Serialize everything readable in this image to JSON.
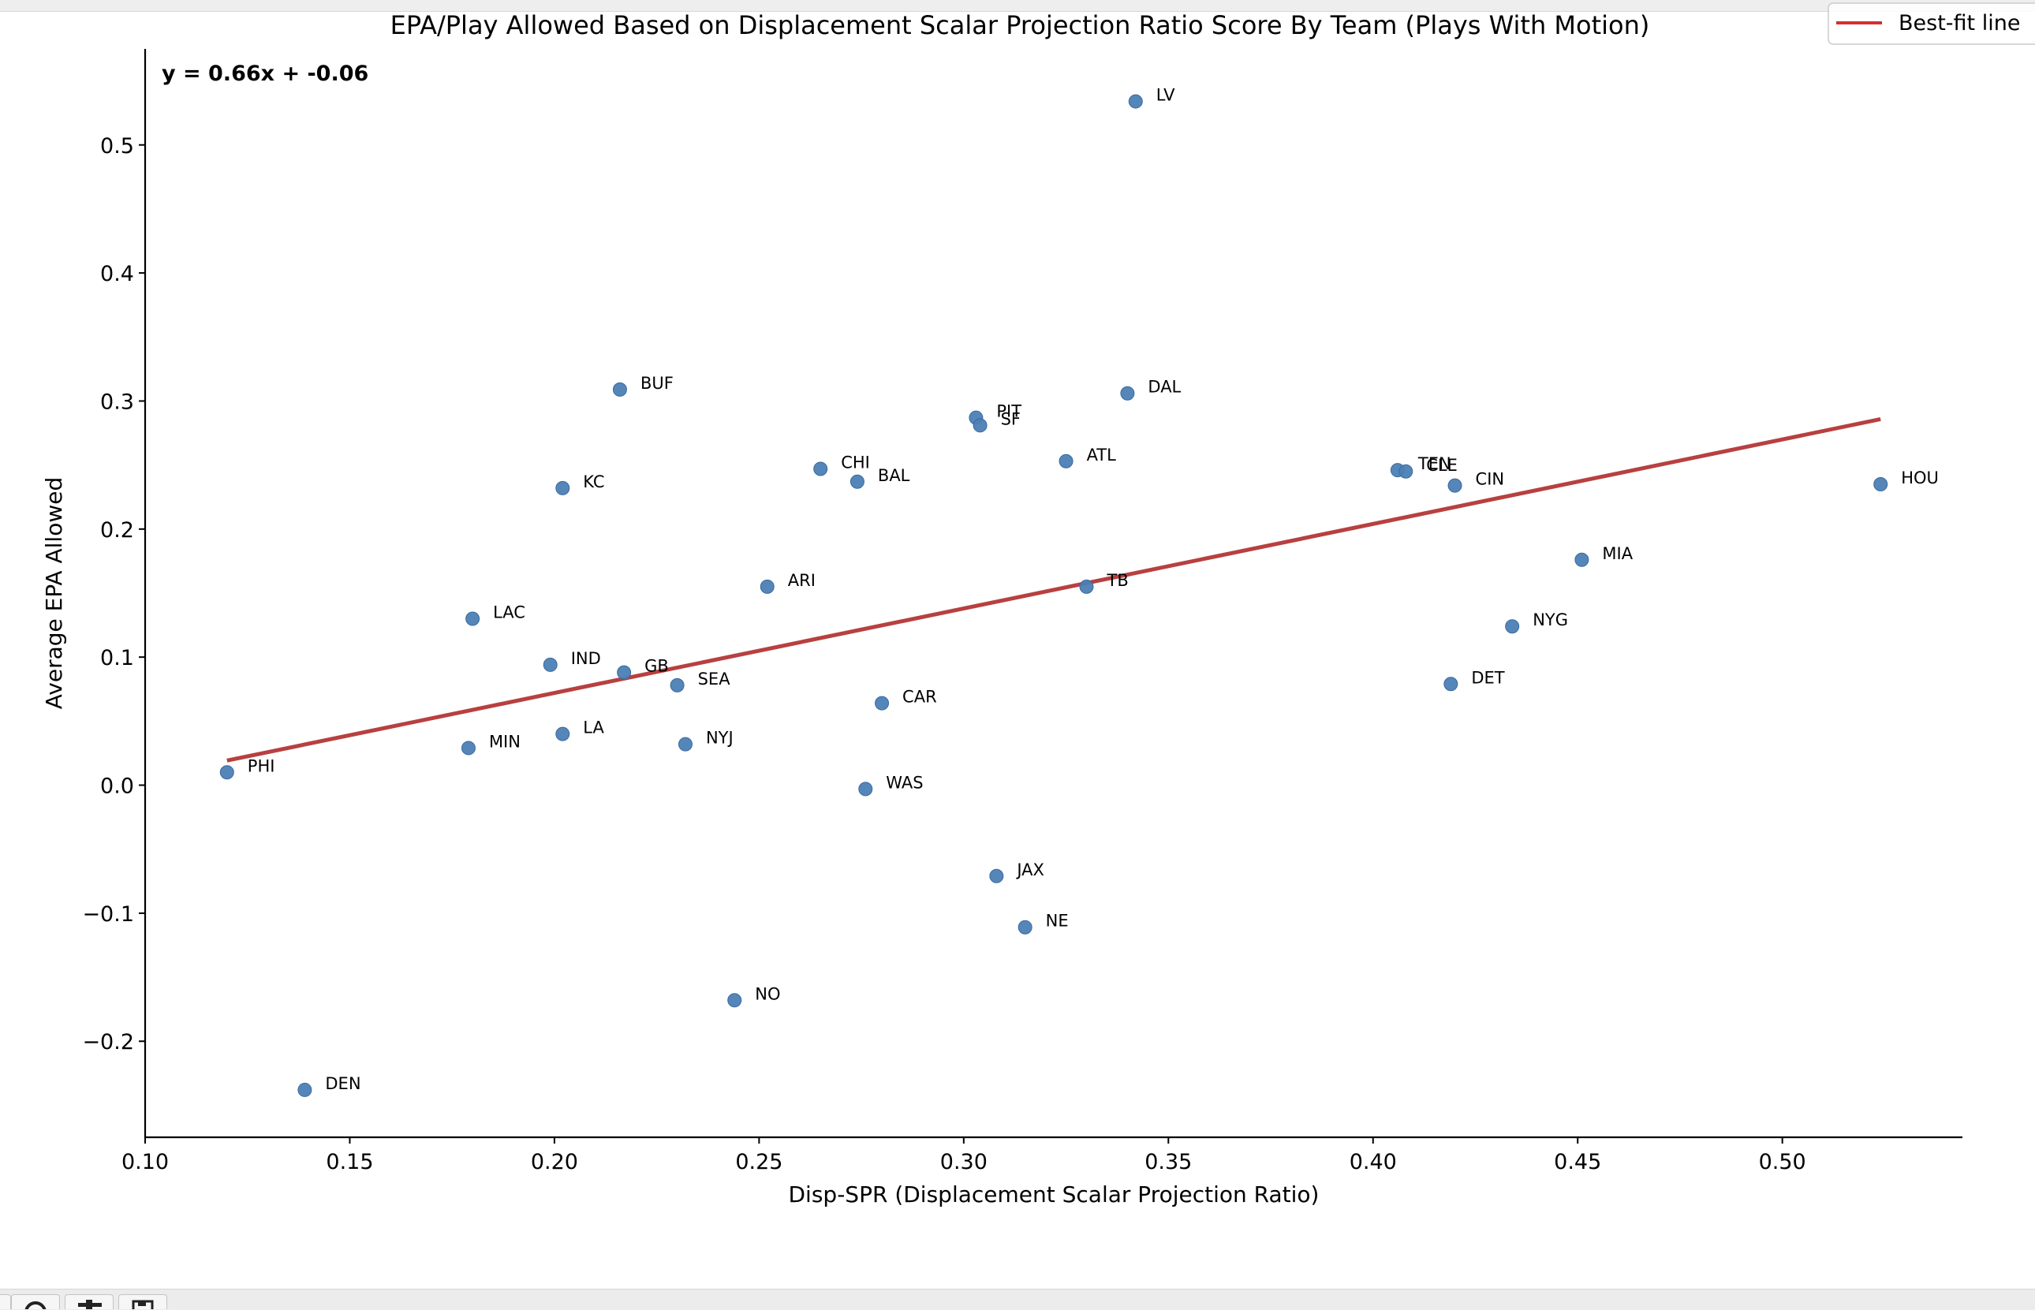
{
  "chart_data": {
    "type": "scatter",
    "title": "EPA/Play Allowed Based on Displacement Scalar Projection Ratio Score By Team (Plays With Motion)",
    "xlabel": "Disp-SPR (Displacement Scalar Projection Ratio)",
    "ylabel": "Average EPA Allowed",
    "xlim": [
      0.1,
      0.544
    ],
    "ylim": [
      -0.275,
      0.575
    ],
    "xticks": [
      "0.10",
      "0.15",
      "0.20",
      "0.25",
      "0.30",
      "0.35",
      "0.40",
      "0.45",
      "0.50"
    ],
    "yticks": [
      "−0.2",
      "−0.1",
      "0.0",
      "0.1",
      "0.2",
      "0.3",
      "0.4",
      "0.5"
    ],
    "xtick_values": [
      0.1,
      0.15,
      0.2,
      0.25,
      0.3,
      0.35,
      0.4,
      0.45,
      0.5
    ],
    "ytick_values": [
      -0.2,
      -0.1,
      0.0,
      0.1,
      0.2,
      0.3,
      0.4,
      0.5
    ],
    "grid": false,
    "point_color": "#4c7fb5",
    "fit_color": "#b84040",
    "legend": {
      "placement": "top-right",
      "entries": [
        "Best-fit line"
      ]
    },
    "annotation": "y = 0.66x + -0.06",
    "fit_line": {
      "slope": 0.66,
      "intercept": -0.06,
      "x_start": 0.12,
      "x_end": 0.524
    },
    "points": [
      {
        "team": "LV",
        "x": 0.342,
        "y": 0.534
      },
      {
        "team": "BUF",
        "x": 0.216,
        "y": 0.309
      },
      {
        "team": "DAL",
        "x": 0.34,
        "y": 0.306
      },
      {
        "team": "PIT",
        "x": 0.303,
        "y": 0.287
      },
      {
        "team": "SF",
        "x": 0.304,
        "y": 0.281
      },
      {
        "team": "ATL",
        "x": 0.325,
        "y": 0.253
      },
      {
        "team": "CHI",
        "x": 0.265,
        "y": 0.247
      },
      {
        "team": "TEN",
        "x": 0.406,
        "y": 0.246
      },
      {
        "team": "CLE",
        "x": 0.408,
        "y": 0.245
      },
      {
        "team": "BAL",
        "x": 0.274,
        "y": 0.237
      },
      {
        "team": "CIN",
        "x": 0.42,
        "y": 0.234
      },
      {
        "team": "HOU",
        "x": 0.524,
        "y": 0.235
      },
      {
        "team": "KC",
        "x": 0.202,
        "y": 0.232
      },
      {
        "team": "MIA",
        "x": 0.451,
        "y": 0.176
      },
      {
        "team": "ARI",
        "x": 0.252,
        "y": 0.155
      },
      {
        "team": "TB",
        "x": 0.33,
        "y": 0.155
      },
      {
        "team": "LAC",
        "x": 0.18,
        "y": 0.13
      },
      {
        "team": "NYG",
        "x": 0.434,
        "y": 0.124
      },
      {
        "team": "IND",
        "x": 0.199,
        "y": 0.094
      },
      {
        "team": "GB",
        "x": 0.217,
        "y": 0.088
      },
      {
        "team": "DET",
        "x": 0.419,
        "y": 0.079
      },
      {
        "team": "SEA",
        "x": 0.23,
        "y": 0.078
      },
      {
        "team": "CAR",
        "x": 0.28,
        "y": 0.064
      },
      {
        "team": "LA",
        "x": 0.202,
        "y": 0.04
      },
      {
        "team": "NYJ",
        "x": 0.232,
        "y": 0.032
      },
      {
        "team": "MIN",
        "x": 0.179,
        "y": 0.029
      },
      {
        "team": "PHI",
        "x": 0.12,
        "y": 0.01
      },
      {
        "team": "WAS",
        "x": 0.276,
        "y": -0.003
      },
      {
        "team": "JAX",
        "x": 0.308,
        "y": -0.071
      },
      {
        "team": "NE",
        "x": 0.315,
        "y": -0.111
      },
      {
        "team": "NO",
        "x": 0.244,
        "y": -0.168
      },
      {
        "team": "DEN",
        "x": 0.139,
        "y": -0.238
      }
    ]
  }
}
